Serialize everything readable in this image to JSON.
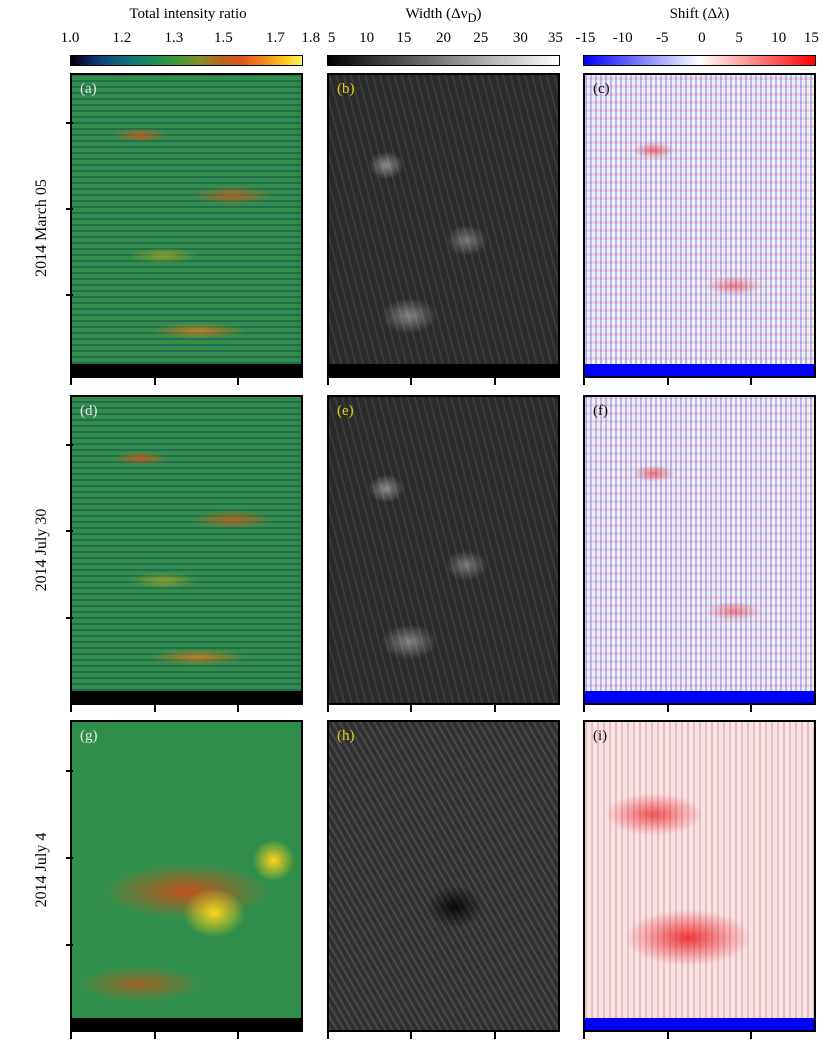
{
  "columns": [
    {
      "title": "Total intensity ratio",
      "ticks": [
        "1.0",
        "1.2",
        "1.3",
        "1.5",
        "1.7",
        "1.8"
      ]
    },
    {
      "title_prefix": "Width (Δν",
      "title_sub": "D",
      "title_suffix": ")",
      "ticks": [
        "5",
        "10",
        "15",
        "20",
        "25",
        "30",
        "35"
      ]
    },
    {
      "title": "Shift  (Δλ)",
      "ticks": [
        "-15",
        "-10",
        "-5",
        "0",
        "5",
        "10",
        "15"
      ]
    }
  ],
  "rows": [
    {
      "date": "2014 March 05",
      "panels": [
        "(a)",
        "(b)",
        "(c)"
      ]
    },
    {
      "date": "2014 July 30",
      "panels": [
        "(d)",
        "(e)",
        "(f)"
      ]
    },
    {
      "date": "2014 July 4",
      "panels": [
        "(g)",
        "(h)",
        "(i)"
      ]
    }
  ],
  "colors": {
    "label_light": "#e8e8e8",
    "label_yellow": "#e0d21a",
    "label_dark": "#111111",
    "strip_black": "#000000",
    "strip_blue": "#0000ff"
  }
}
